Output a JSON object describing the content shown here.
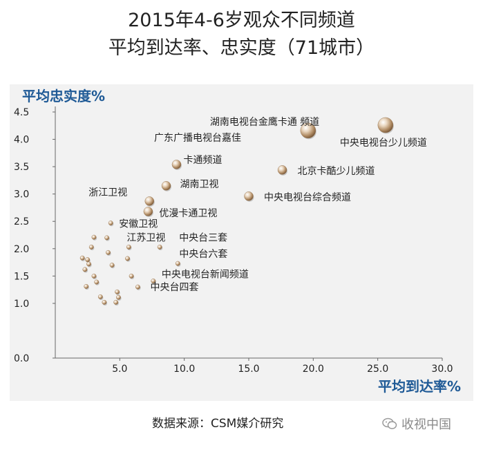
{
  "title_lines": [
    "2015年4-6岁观众不同频道",
    "平均到达率、忠实度（71城市）"
  ],
  "source": "数据来源：CSM媒介研究",
  "watermark": "收视中国",
  "colors": {
    "panel_bg": "#f2f2f2",
    "axis_label": "#1f5a96",
    "point": "#c7a882"
  },
  "chart_data": {
    "type": "scatter",
    "title": "2015年4-6岁观众不同频道平均到达率、忠实度（71城市）",
    "xlabel": "平均到达率%",
    "ylabel": "平均忠实度%",
    "xlim": [
      0,
      30
    ],
    "ylim": [
      0,
      4.5
    ],
    "xticks": [
      "5.0",
      "10.0",
      "15.0",
      "20.0",
      "25.0",
      "30.0"
    ],
    "yticks": [
      "0.0",
      "1.0",
      "1.5",
      "2.0",
      "2.5",
      "3.0",
      "3.5",
      "4.0",
      "4.5"
    ],
    "grid": false,
    "points": [
      {
        "x": 25.6,
        "y": 4.26,
        "label": "中央电视台少儿频道",
        "size": "large"
      },
      {
        "x": 19.6,
        "y": 4.16,
        "label": "湖南电视台金鹰卡通 频道",
        "size": "large"
      },
      {
        "x": 17.6,
        "y": 3.44,
        "label": "北京卡酷少儿频道",
        "size": "medium"
      },
      {
        "x": 15.0,
        "y": 2.96,
        "label": "中央电视台综合频道",
        "size": "medium"
      },
      {
        "x": 9.4,
        "y": 3.54,
        "label": "卡通频道",
        "size": "medium"
      },
      {
        "x": 8.6,
        "y": 3.15,
        "label": "湖南卫视",
        "size": "medium"
      },
      {
        "x": 7.3,
        "y": 2.87,
        "label": "浙江卫视",
        "size": "medium"
      },
      {
        "x": 7.2,
        "y": 2.68,
        "label": "优漫卡通卫视",
        "size": "medium"
      },
      {
        "x": 4.3,
        "y": 2.47,
        "label": "安徽卫视",
        "size": "small"
      },
      {
        "x": 5.7,
        "y": 2.03,
        "label": "江苏卫视",
        "size": "small"
      },
      {
        "x": 8.1,
        "y": 2.03,
        "label": "中央台三套",
        "size": "small"
      },
      {
        "x": 9.5,
        "y": 1.73,
        "label": "中央台六套",
        "size": "small"
      },
      {
        "x": 7.6,
        "y": 1.41,
        "label": "中央电视台新闻频道",
        "size": "small"
      },
      {
        "x": 6.4,
        "y": 1.3,
        "label": "中央台四套",
        "size": "small"
      },
      {
        "x": 3.0,
        "y": 2.21,
        "label": "",
        "size": "small"
      },
      {
        "x": 4.0,
        "y": 2.2,
        "label": "",
        "size": "small"
      },
      {
        "x": 2.8,
        "y": 2.03,
        "label": "",
        "size": "small"
      },
      {
        "x": 4.1,
        "y": 1.93,
        "label": "",
        "size": "small"
      },
      {
        "x": 2.1,
        "y": 1.83,
        "label": "",
        "size": "small"
      },
      {
        "x": 2.5,
        "y": 1.8,
        "label": "",
        "size": "small"
      },
      {
        "x": 5.6,
        "y": 1.82,
        "label": "",
        "size": "small"
      },
      {
        "x": 2.6,
        "y": 1.72,
        "label": "",
        "size": "small"
      },
      {
        "x": 4.4,
        "y": 1.7,
        "label": "",
        "size": "small"
      },
      {
        "x": 2.3,
        "y": 1.62,
        "label": "",
        "size": "small"
      },
      {
        "x": 3.0,
        "y": 1.5,
        "label": "",
        "size": "small"
      },
      {
        "x": 5.9,
        "y": 1.5,
        "label": "",
        "size": "small"
      },
      {
        "x": 3.2,
        "y": 1.39,
        "label": "",
        "size": "small"
      },
      {
        "x": 2.4,
        "y": 1.31,
        "label": "",
        "size": "small"
      },
      {
        "x": 4.8,
        "y": 1.21,
        "label": "",
        "size": "small"
      },
      {
        "x": 3.5,
        "y": 1.12,
        "label": "",
        "size": "small"
      },
      {
        "x": 4.9,
        "y": 1.11,
        "label": "",
        "size": "small"
      },
      {
        "x": 3.8,
        "y": 1.02,
        "label": "",
        "size": "small"
      },
      {
        "x": 4.7,
        "y": 1.02,
        "label": "",
        "size": "small"
      }
    ]
  }
}
